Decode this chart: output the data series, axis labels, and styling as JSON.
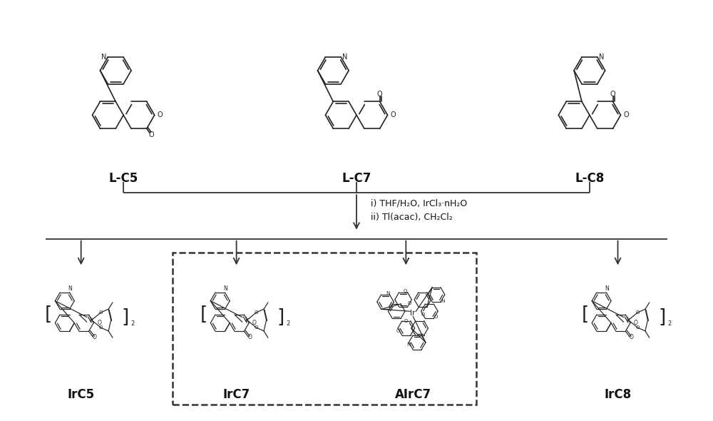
{
  "bg_color": "#ffffff",
  "line_color": "#222222",
  "text_color": "#111111",
  "label_LC5": "L-C5",
  "label_LC7": "L-C7",
  "label_LC8": "L-C8",
  "label_IrC5": "IrC5",
  "label_IrC7": "IrC7",
  "label_AIrC7": "AIrC7",
  "label_IrC8": "IrC8",
  "reaction_line1": "i) THF/H₂O, IrCl₃·nH₂O",
  "reaction_line2": "ii) Tl(acac), CH₂Cl₂",
  "arrow_color": "#333333",
  "dashed_box_color": "#333333"
}
